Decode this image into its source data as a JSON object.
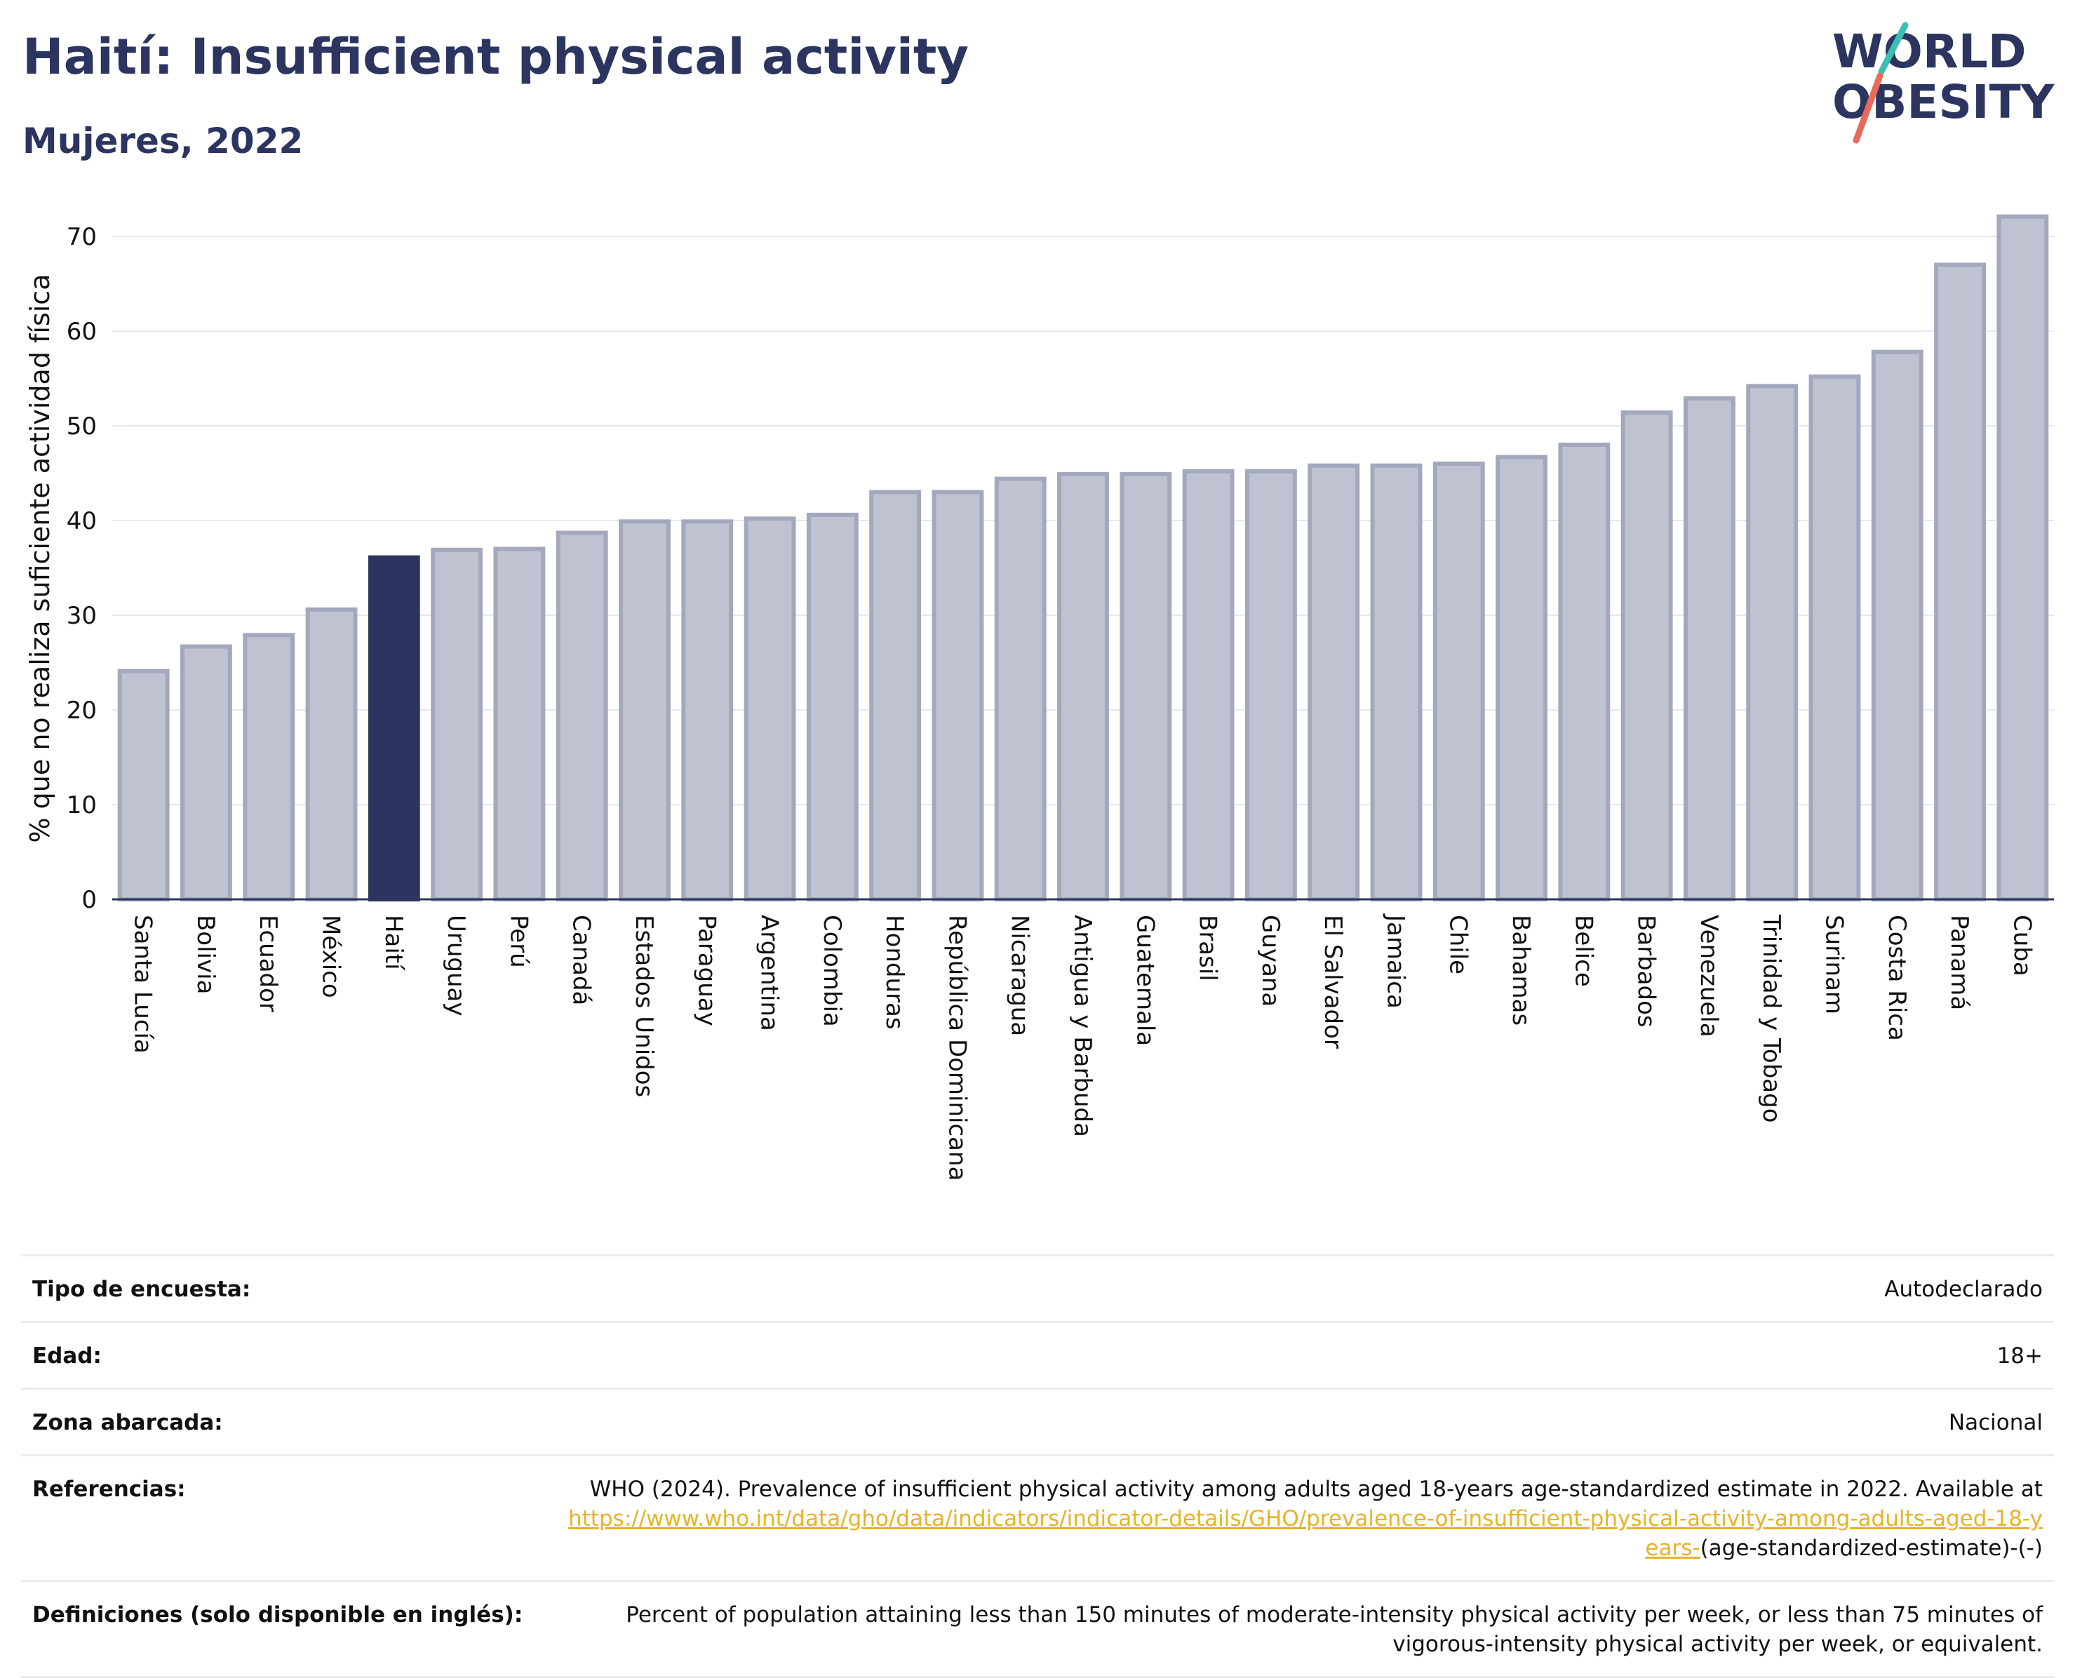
{
  "header": {
    "title": "Haití: Insufficient physical activity",
    "subtitle": "Mujeres, 2022"
  },
  "logo": {
    "line1": "WORLD",
    "line2": "OBESITY"
  },
  "colors": {
    "highlight_bar": "#2c3560",
    "bar_fill": "#bfc2d0",
    "bar_stroke": "#a3a8bd",
    "text_dark": "#2c3560",
    "link": "#e8b22b",
    "logo_teal": "#3bbfb4",
    "logo_red": "#e76a5b"
  },
  "chart_data": {
    "type": "bar",
    "ylabel": "% que no realiza suficiente actividad física",
    "xlabel": "",
    "ylim": [
      0,
      72
    ],
    "yticks": [
      0,
      10,
      20,
      30,
      40,
      50,
      60,
      70
    ],
    "grid": true,
    "highlight": "Haití",
    "categories": [
      "Santa Lucía",
      "Bolivia",
      "Ecuador",
      "México",
      "Haití",
      "Uruguay",
      "Perú",
      "Canadá",
      "Estados Unidos",
      "Paraguay",
      "Argentina",
      "Colombia",
      "Honduras",
      "República Dominicana",
      "Nicaragua",
      "Antigua y Barbuda",
      "Guatemala",
      "Brasil",
      "Guyana",
      "El Salvador",
      "Jamaica",
      "Chile",
      "Bahamas",
      "Belice",
      "Barbados",
      "Venezuela",
      "Trinidad y Tobago",
      "Surinam",
      "Costa Rica",
      "Panamá",
      "Cuba"
    ],
    "values": [
      24.1,
      26.7,
      27.9,
      30.6,
      36.1,
      36.9,
      37.0,
      38.7,
      39.9,
      39.9,
      40.2,
      40.6,
      43.0,
      43.0,
      44.4,
      44.9,
      44.9,
      45.2,
      45.2,
      45.8,
      45.8,
      46.0,
      46.7,
      48.0,
      51.4,
      52.9,
      54.2,
      55.2,
      57.8,
      67.0,
      72.1
    ]
  },
  "meta": [
    {
      "label": "Tipo de encuesta:",
      "value": "Autodeclarado"
    },
    {
      "label": "Edad:",
      "value": "18+"
    },
    {
      "label": "Zona abarcada:",
      "value": "Nacional"
    },
    {
      "label": "Referencias:",
      "value": "WHO (2024). Prevalence of insufficient physical activity among adults aged 18-years age-standardized estimate in 2022. Available at",
      "link": "https://www.who.int/data/gho/data/indicators/indicator-details/GHO/prevalence-of-insufficient-physical-activity-among-adults-aged-18-years-",
      "suffix": "(age-standardized-estimate)-(-)"
    },
    {
      "label": "Definiciones (solo disponible en inglés):",
      "value": "Percent of population attaining less than 150 minutes of moderate-intensity physical activity per week, or less than 75 minutes of vigorous-intensity physical activity per week, or equivalent."
    }
  ]
}
